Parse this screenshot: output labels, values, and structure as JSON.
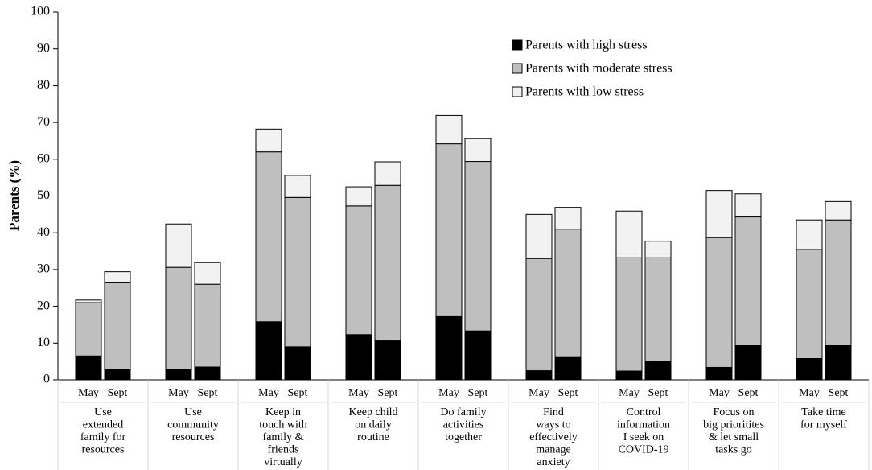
{
  "chart_data": {
    "type": "bar",
    "stacked": true,
    "title": "",
    "xlabel": "",
    "ylabel": "Parents (%)",
    "ylim": [
      0,
      100
    ],
    "yticks": [
      0,
      10,
      20,
      30,
      40,
      50,
      60,
      70,
      80,
      90,
      100
    ],
    "periods": [
      "May",
      "Sept"
    ],
    "groups": [
      {
        "label": [
          "Use",
          "extended",
          "family for",
          "resources"
        ]
      },
      {
        "label": [
          "Use",
          "community",
          "resources"
        ]
      },
      {
        "label": [
          "Keep in",
          "touch with",
          "family &",
          "friends",
          "virtually"
        ]
      },
      {
        "label": [
          "Keep child",
          "on daily",
          "routine"
        ]
      },
      {
        "label": [
          "Do family",
          "activities",
          "together"
        ]
      },
      {
        "label": [
          "Find",
          "ways to",
          "effectively",
          "manage",
          "anxiety"
        ]
      },
      {
        "label": [
          "Control",
          "information",
          "I seek on",
          "COVID-19"
        ]
      },
      {
        "label": [
          "Focus on",
          "big prioritites",
          "& let small",
          "tasks go"
        ]
      },
      {
        "label": [
          "Take time",
          "for myself"
        ]
      }
    ],
    "series": [
      {
        "name": "Parents with high stress",
        "color": "#000000",
        "values": [
          [
            6.5,
            2.8
          ],
          [
            2.8,
            3.5
          ],
          [
            15.8,
            9.0
          ],
          [
            12.3,
            10.6
          ],
          [
            17.2,
            13.3
          ],
          [
            2.5,
            6.3
          ],
          [
            2.4,
            5.0
          ],
          [
            3.4,
            9.3
          ],
          [
            5.8,
            9.3
          ]
        ]
      },
      {
        "name": "Parents with moderate stress",
        "color": "#bfbfbf",
        "values": [
          [
            14.5,
            23.6
          ],
          [
            27.8,
            22.5
          ],
          [
            46.2,
            40.6
          ],
          [
            35.0,
            42.3
          ],
          [
            47.0,
            46.1
          ],
          [
            30.5,
            34.7
          ],
          [
            30.8,
            28.2
          ],
          [
            35.3,
            35.0
          ],
          [
            29.7,
            34.2
          ]
        ]
      },
      {
        "name": "Parents with low stress",
        "color": "#f2f2f2",
        "values": [
          [
            0.7,
            3.0
          ],
          [
            11.8,
            5.9
          ],
          [
            6.2,
            6.0
          ],
          [
            5.2,
            6.4
          ],
          [
            7.7,
            6.2
          ],
          [
            12.0,
            5.9
          ],
          [
            12.7,
            4.5
          ],
          [
            12.8,
            6.3
          ],
          [
            8.0,
            5.0
          ]
        ]
      }
    ],
    "legend_position": "top-right"
  }
}
